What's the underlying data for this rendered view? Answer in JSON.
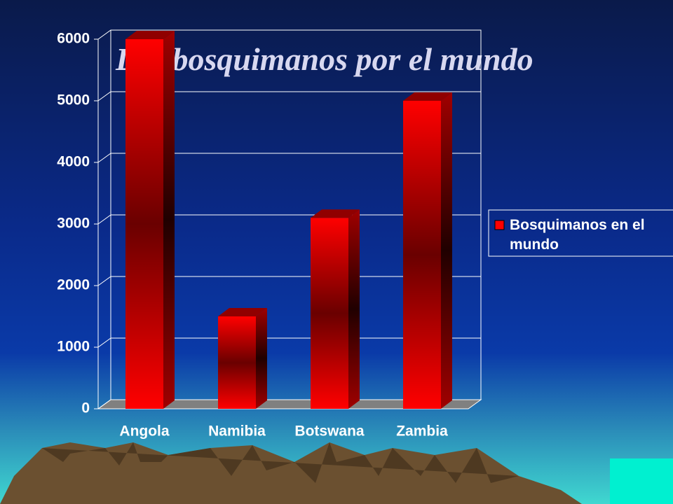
{
  "chart_data": {
    "type": "bar",
    "title": "Los bosquimanos por el mundo",
    "categories": [
      "Angola",
      "Namibia",
      "Botswana",
      "Zambia"
    ],
    "series": [
      {
        "name": "Bosquimanos en el mundo",
        "color": "#ff0000",
        "values": [
          6000,
          1500,
          3100,
          5000
        ]
      }
    ],
    "ylim": [
      0,
      6000
    ],
    "yticks": [
      0,
      1000,
      2000,
      3000,
      4000,
      5000,
      6000
    ],
    "grid": true,
    "legend": "right"
  }
}
